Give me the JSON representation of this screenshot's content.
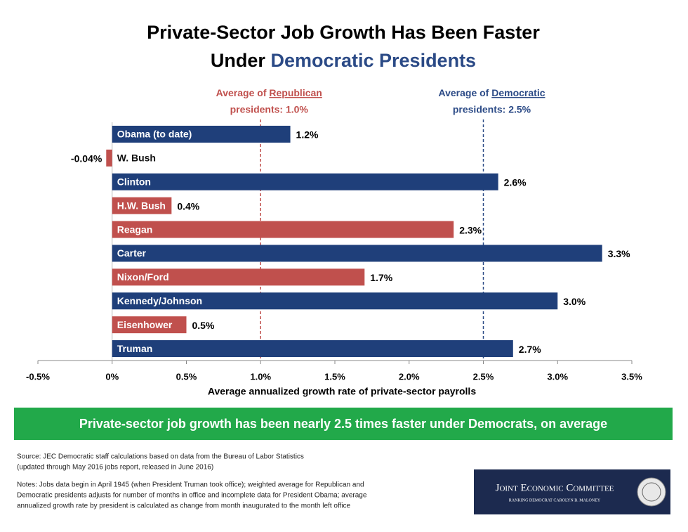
{
  "chart_data": {
    "type": "hbar",
    "title_line1": "Private-Sector Job Growth Has Been Faster",
    "title_line2_start": "Under",
    "title_line2_highlight": "Democratic Presidents",
    "title_highlight_color": "#2b4a86",
    "x_label": "Average annualized growth rate of private-sector payrolls",
    "categories": [
      "Obama (to date)",
      "W. Bush",
      "Clinton",
      "H.W. Bush",
      "Reagan",
      "Carter",
      "Nixon/Ford",
      "Kennedy/Johnson",
      "Eisenhower",
      "Truman"
    ],
    "values": [
      1.2,
      -0.04,
      2.6,
      0.4,
      2.3,
      3.3,
      1.7,
      3.0,
      0.5,
      2.7
    ],
    "value_labels": [
      "1.2%",
      "-0.04%",
      "2.6%",
      "0.4%",
      "2.3%",
      "3.3%",
      "1.7%",
      "3.0%",
      "0.5%",
      "2.7%"
    ],
    "colors": [
      "#1f3f7a",
      "#c0504d",
      "#1f3f7a",
      "#c0504d",
      "#c0504d",
      "#1f3f7a",
      "#c0504d",
      "#1f3f7a",
      "#c0504d",
      "#1f3f7a"
    ],
    "xlim": [
      -0.5,
      3.5
    ],
    "xticks": [
      {
        "value": -0.5,
        "label": "-0.5%"
      },
      {
        "value": 0,
        "label": "0%"
      },
      {
        "value": 0.5,
        "label": "0.5%"
      },
      {
        "value": 1.0,
        "label": "1.0%"
      },
      {
        "value": 1.5,
        "label": "1.5%"
      },
      {
        "value": 2.0,
        "label": "2.0%"
      },
      {
        "value": 2.5,
        "label": "2.5%"
      },
      {
        "value": 3.0,
        "label": "3.0%"
      },
      {
        "value": 3.5,
        "label": "3.5%"
      }
    ],
    "reference_lines": [
      {
        "value": 1.0,
        "text_before": "Average of",
        "party": "Republican",
        "text_after": "presidents: 1.0%",
        "color": "#c0504d"
      },
      {
        "value": 2.5,
        "text_before": "Average of",
        "party": "Democratic",
        "text_after": "presidents: 2.5%",
        "color": "#2b4a86"
      }
    ]
  },
  "banner": "Private-sector job growth has been nearly 2.5 times faster under Democrats, on average",
  "source": [
    "Source: JEC Democratic staff calculations based on data from the Bureau of Labor Statistics",
    "(updated through May 2016 jobs report, released in June 2016)"
  ],
  "notes": [
    "Notes: Jobs data begin in April 1945 (when President Truman took office); weighted average for Republican and",
    "Democratic presidents adjusts for number of months in office and incomplete data for President Obama; average",
    "annualized growth rate by president is calculated as change from month inaugurated to the month left office"
  ],
  "logo": {
    "title": "Joint Economic Committee",
    "subtitle": "Ranking Democrat Carolyn B. Maloney"
  }
}
